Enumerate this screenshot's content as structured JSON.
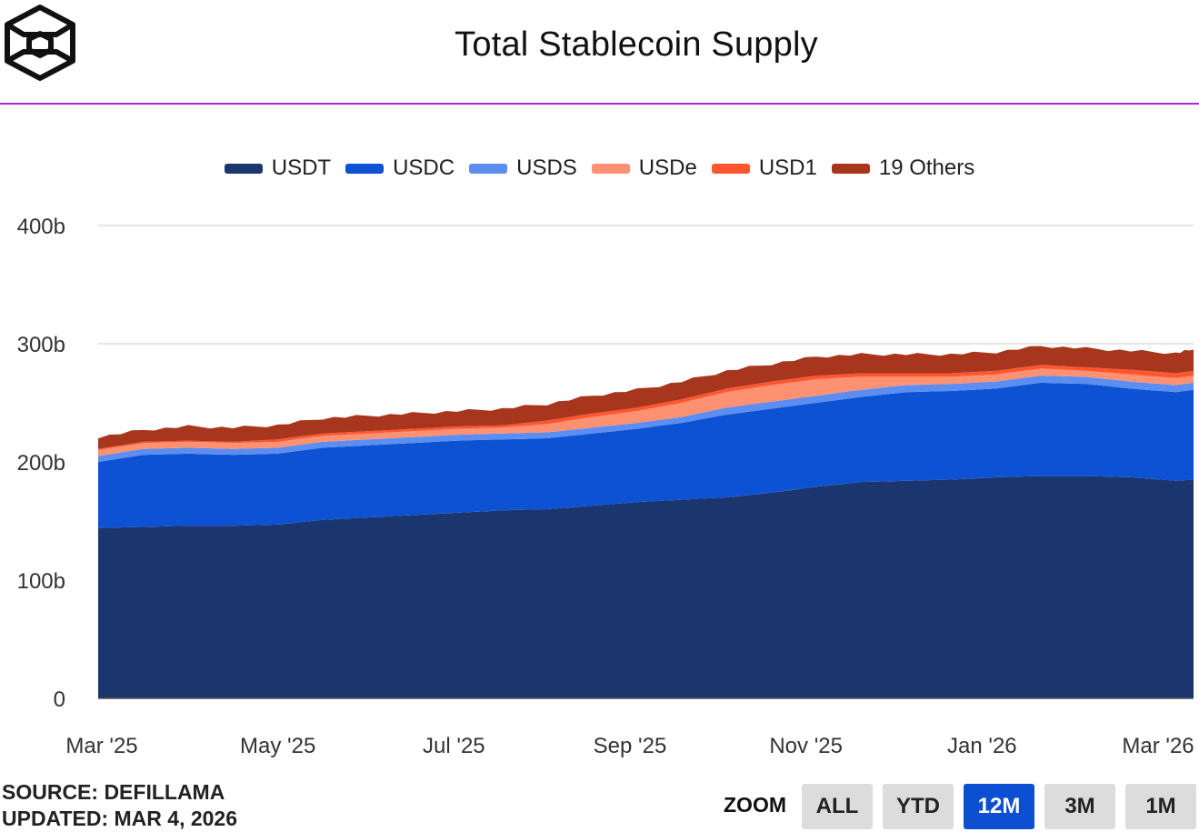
{
  "header": {
    "title": "Total Stablecoin Supply",
    "logo_icon": "cube-logo-icon"
  },
  "legend": [
    {
      "label": "USDT",
      "color": "#1b366e"
    },
    {
      "label": "USDC",
      "color": "#0c52d3"
    },
    {
      "label": "USDS",
      "color": "#5b8ef0"
    },
    {
      "label": "USDe",
      "color": "#ff9173"
    },
    {
      "label": "USD1",
      "color": "#ff5630"
    },
    {
      "label": "19 Others",
      "color": "#a8361d"
    }
  ],
  "chart_data": {
    "type": "area",
    "stacked": true,
    "title": "Total Stablecoin Supply",
    "xlabel": "",
    "ylabel": "",
    "ylim": [
      0,
      400
    ],
    "y_unit": "billions USD",
    "y_ticks": [
      0,
      100,
      200,
      300,
      400
    ],
    "y_tick_labels": [
      "0",
      "100b",
      "200b",
      "300b",
      "400b"
    ],
    "x_tick_labels": [
      "Mar '25",
      "May '25",
      "Jul '25",
      "Sep '25",
      "Nov '25",
      "Jan '26",
      "Mar '26"
    ],
    "x_tick_months": [
      0,
      2,
      4,
      6,
      8,
      10,
      12
    ],
    "x_months": [
      0,
      0.5,
      1,
      1.5,
      2,
      2.5,
      3,
      3.5,
      4,
      4.5,
      5,
      5.5,
      6,
      6.5,
      7,
      7.5,
      8,
      8.5,
      9,
      9.5,
      10,
      10.5,
      11,
      11.5,
      12,
      12.2
    ],
    "grid": true,
    "legend_position": "top-center",
    "series": [
      {
        "name": "USDT",
        "color": "#1b366e",
        "values": [
          144,
          145,
          146,
          146,
          147,
          151,
          153,
          155,
          157,
          159,
          160,
          163,
          166,
          168,
          170,
          174,
          179,
          183,
          184,
          185,
          187,
          188,
          188,
          187,
          184,
          185
        ]
      },
      {
        "name": "USDC",
        "color": "#0c52d3",
        "values": [
          56,
          61,
          61,
          60,
          60,
          61,
          61,
          61,
          61,
          60,
          60,
          61,
          62,
          65,
          70,
          71,
          71,
          72,
          75,
          75,
          75,
          79,
          78,
          75,
          75,
          76
        ]
      },
      {
        "name": "USDS",
        "color": "#5b8ef0",
        "values": [
          5,
          5,
          5,
          5,
          5,
          5,
          5,
          5,
          5,
          5,
          5,
          5,
          5,
          5,
          6,
          6,
          6,
          6,
          6,
          6,
          6,
          6,
          6,
          6,
          6,
          6
        ]
      },
      {
        "name": "USDe",
        "color": "#ff9173",
        "values": [
          5,
          5,
          5,
          5,
          5,
          5,
          5,
          5,
          5,
          5,
          7,
          9,
          10,
          12,
          13,
          14,
          14,
          11,
          7,
          6,
          6,
          6,
          5,
          6,
          6,
          6
        ]
      },
      {
        "name": "USD1",
        "color": "#ff5630",
        "values": [
          1,
          1,
          1,
          1,
          2,
          2,
          2,
          2,
          2,
          2,
          3,
          3,
          3,
          3,
          3,
          3,
          3,
          3,
          3,
          3,
          3,
          3,
          3,
          4,
          4,
          4
        ]
      },
      {
        "name": "19 Others",
        "color": "#a8361d",
        "values": [
          10,
          10,
          12,
          12,
          12,
          13,
          13,
          13,
          13,
          14,
          14,
          15,
          15,
          15,
          15,
          15,
          16,
          16,
          16,
          16,
          16,
          16,
          16,
          16,
          17,
          18
        ]
      }
    ]
  },
  "footer": {
    "source": "SOURCE: DEFILLAMA",
    "updated": "UPDATED: MAR 4, 2026",
    "zoom_label": "ZOOM",
    "zoom_options": [
      "ALL",
      "YTD",
      "12M",
      "3M",
      "1M"
    ],
    "zoom_selected": "12M"
  },
  "colors": {
    "accent_rule": "#a62be0",
    "zoom_active": "#0c4fd1",
    "zoom_inactive": "#dcdcdc",
    "grid": "#e6e6e6"
  }
}
